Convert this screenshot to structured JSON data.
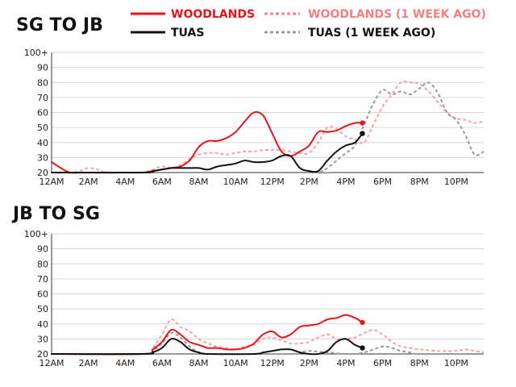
{
  "chart_data": [
    {
      "type": "line",
      "title": "SG TO JB",
      "x_ticks": [
        "12AM",
        "2AM",
        "4AM",
        "6AM",
        "8AM",
        "10AM",
        "12PM",
        "2PM",
        "4PM",
        "6PM",
        "8PM",
        "10PM"
      ],
      "y_ticks": [
        "20",
        "30",
        "40",
        "50",
        "60",
        "70",
        "80",
        "90",
        "100+"
      ],
      "xlim": [
        0,
        23.5
      ],
      "ylim": [
        20,
        100
      ],
      "grid": true,
      "series": [
        {
          "name": "WOODLANDS (1 WEEK AGO)",
          "color": "#f4a3a3",
          "dashed": true,
          "x": [
            0,
            1,
            1.5,
            2,
            2.5,
            3,
            4,
            5,
            5.5,
            6,
            6.5,
            7,
            7.5,
            8,
            8.5,
            9,
            9.5,
            10,
            10.5,
            11,
            11.5,
            12,
            12.5,
            13,
            13.5,
            14,
            14.5,
            15,
            15.5,
            16,
            16.5,
            17,
            17.5,
            18,
            18.5,
            19,
            19.5,
            20,
            20.5,
            21,
            21.5,
            22,
            22.5,
            23,
            23.5
          ],
          "values": [
            20,
            20,
            21,
            23,
            22,
            20,
            20,
            20,
            22,
            24,
            23,
            25,
            29,
            32,
            33,
            33,
            32,
            33,
            34,
            34,
            35,
            35,
            35,
            34,
            33,
            33,
            40,
            50,
            49,
            44,
            42,
            40,
            52,
            64,
            72,
            80,
            80,
            79,
            74,
            67,
            60,
            56,
            55,
            53,
            54
          ]
        },
        {
          "name": "TUAS (1 WEEK AGO)",
          "color": "#999999",
          "dashed": true,
          "x": [
            0,
            14,
            14.5,
            15,
            15.5,
            16,
            16.5,
            17,
            17.5,
            18,
            18.5,
            19,
            19.5,
            20,
            20.5,
            21,
            21.5,
            22,
            22.5,
            23,
            23.5
          ],
          "values": [
            20,
            20,
            20,
            23,
            28,
            33,
            38,
            52,
            66,
            75,
            72,
            74,
            72,
            76,
            80,
            73,
            60,
            55,
            45,
            32,
            34
          ]
        },
        {
          "name": "WOODLANDS",
          "color": "#e8141c",
          "dashed": false,
          "x": [
            0,
            0.5,
            1,
            1.5,
            2,
            3,
            4,
            5,
            5.5,
            6,
            6.5,
            7,
            7.5,
            8,
            8.5,
            9,
            9.5,
            10,
            10.5,
            11,
            11.5,
            12,
            12.5,
            13,
            13.5,
            14,
            14.5,
            15,
            15.5,
            16,
            16.5,
            16.9
          ],
          "values": [
            27,
            23,
            20,
            20,
            20,
            20,
            20,
            20,
            21,
            22,
            23,
            24,
            28,
            37,
            41,
            41,
            43,
            47,
            54,
            60,
            58,
            46,
            34,
            31,
            34,
            38,
            47,
            47,
            48,
            51,
            53,
            53
          ]
        },
        {
          "name": "TUAS",
          "color": "#111111",
          "dashed": false,
          "x": [
            0,
            5,
            5.5,
            6,
            6.5,
            7,
            7.5,
            8,
            8.5,
            9,
            9.5,
            10,
            10.5,
            11,
            11.5,
            12,
            12.5,
            13,
            13.5,
            14,
            14.5,
            15,
            15.5,
            16,
            16.5,
            16.9
          ],
          "values": [
            20,
            20,
            21,
            22,
            23,
            23,
            23,
            23,
            22,
            24,
            25,
            26,
            28,
            27,
            27,
            28,
            31,
            31,
            23,
            21,
            21,
            28,
            34,
            38,
            40,
            46
          ]
        }
      ],
      "current": [
        {
          "series": "WOODLANDS",
          "x": 16.9,
          "value": 53
        },
        {
          "series": "TUAS",
          "x": 16.9,
          "value": 46
        }
      ]
    },
    {
      "type": "line",
      "title": "JB TO SG",
      "x_ticks": [
        "12AM",
        "2AM",
        "4AM",
        "6AM",
        "8AM",
        "10AM",
        "12PM",
        "2PM",
        "4PM",
        "6PM",
        "8PM",
        "10PM"
      ],
      "y_ticks": [
        "20",
        "30",
        "40",
        "50",
        "60",
        "70",
        "80",
        "90",
        "100+"
      ],
      "xlim": [
        0,
        23.5
      ],
      "ylim": [
        20,
        100
      ],
      "grid": true,
      "series": [
        {
          "name": "WOODLANDS (1 WEEK AGO)",
          "color": "#f4a3a3",
          "dashed": true,
          "x": [
            0,
            5,
            5.5,
            6,
            6.5,
            7,
            7.5,
            8,
            8.5,
            9,
            9.5,
            10,
            10.5,
            11,
            11.5,
            12,
            12.5,
            13,
            13.5,
            14,
            14.5,
            15,
            15.5,
            16,
            16.5,
            17,
            17.5,
            18,
            18.5,
            19,
            19.5,
            20,
            21,
            22,
            22.5,
            23,
            23.5
          ],
          "values": [
            20,
            20,
            24,
            33,
            43,
            38,
            35,
            30,
            27,
            25,
            24,
            23,
            25,
            26,
            30,
            31,
            29,
            27,
            27,
            28,
            31,
            33,
            30,
            30,
            31,
            34,
            36,
            33,
            28,
            25,
            24,
            23,
            22,
            22,
            23,
            22,
            21
          ]
        },
        {
          "name": "TUAS (1 WEEK AGO)",
          "color": "#999999",
          "dashed": true,
          "x": [
            0,
            5,
            5.5,
            6,
            6.5,
            7,
            7.5,
            8,
            8.5,
            9,
            13,
            13.5,
            14,
            15,
            16,
            16.5,
            17,
            17.5,
            18,
            18.5,
            19,
            19.5,
            20,
            23.5
          ],
          "values": [
            20,
            20,
            22,
            27,
            34,
            31,
            25,
            21,
            20,
            20,
            20,
            21,
            22,
            21,
            20,
            20,
            21,
            23,
            25,
            24,
            22,
            21,
            20,
            20
          ]
        },
        {
          "name": "WOODLANDS",
          "color": "#e8141c",
          "dashed": false,
          "x": [
            0,
            5,
            5.5,
            6,
            6.5,
            7,
            7.5,
            8,
            8.5,
            9,
            9.5,
            10,
            10.5,
            11,
            11.5,
            12,
            12.5,
            13,
            13.5,
            14,
            14.5,
            15,
            15.5,
            16,
            16.5,
            16.9
          ],
          "values": [
            20,
            20,
            23,
            28,
            36,
            33,
            28,
            26,
            24,
            24,
            23,
            23,
            24,
            27,
            33,
            35,
            31,
            33,
            38,
            39,
            40,
            43,
            44,
            46,
            44,
            41
          ]
        },
        {
          "name": "TUAS",
          "color": "#111111",
          "dashed": false,
          "x": [
            0,
            5,
            5.5,
            6,
            6.5,
            7,
            7.5,
            8,
            8.5,
            11,
            11.5,
            12,
            12.5,
            13,
            13.5,
            14,
            14.5,
            15,
            15.5,
            16,
            16.5,
            16.9
          ],
          "values": [
            20,
            20,
            21,
            24,
            30,
            28,
            23,
            21,
            20,
            20,
            21,
            22,
            23,
            23,
            21,
            20,
            20,
            22,
            28,
            30,
            26,
            24
          ]
        }
      ],
      "current": [
        {
          "series": "WOODLANDS",
          "x": 16.9,
          "value": 41
        },
        {
          "series": "TUAS",
          "x": 16.9,
          "value": 24
        }
      ]
    }
  ],
  "legend": [
    {
      "label": "WOODLANDS",
      "color": "#e8141c",
      "dashed": false
    },
    {
      "label": "WOODLANDS (1 WEEK AGO)",
      "color": "#f47f85",
      "dashed": true
    },
    {
      "label": "TUAS",
      "color": "#111111",
      "dashed": false
    },
    {
      "label": "TUAS (1 WEEK AGO)",
      "color": "#999999",
      "dashed": true
    }
  ]
}
